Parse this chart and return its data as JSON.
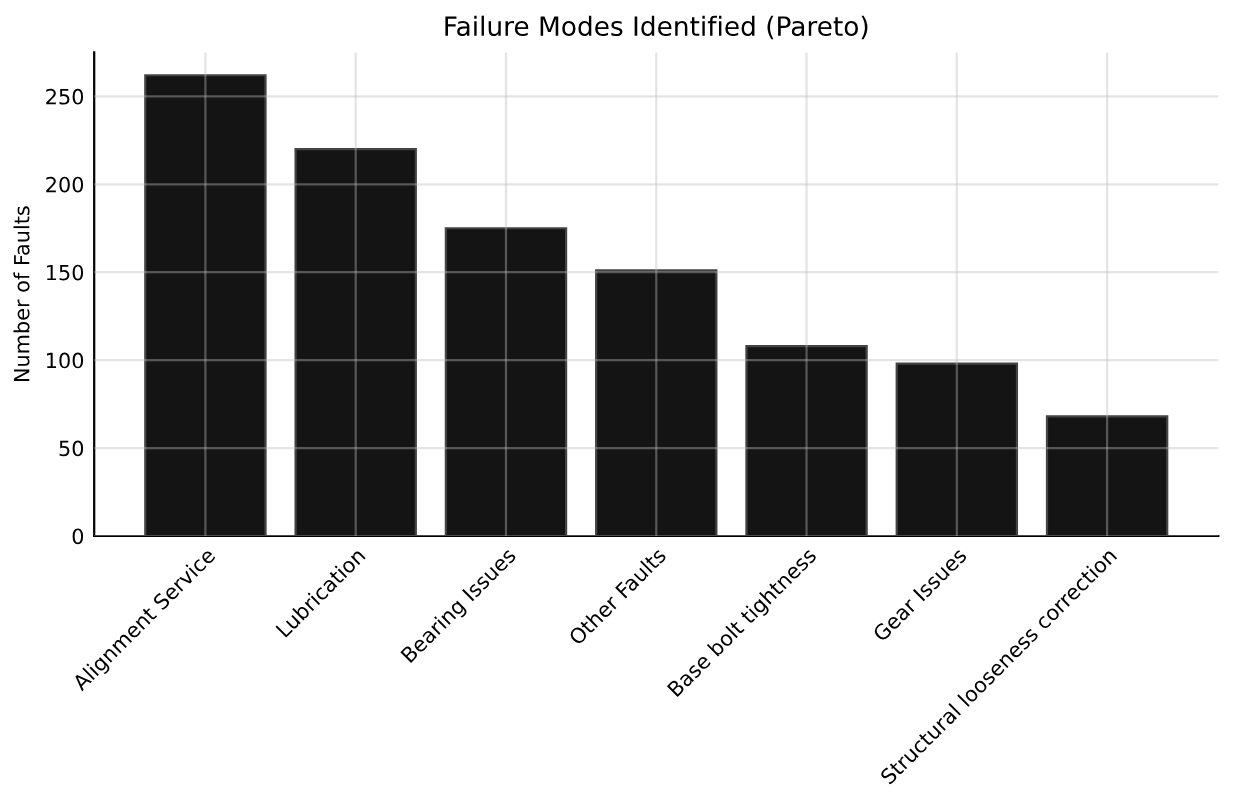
{
  "chart_data": {
    "type": "bar",
    "title": "Failure Modes Identified (Pareto)",
    "ylabel": "Number of Faults",
    "categories": [
      "Alignment Service",
      "Lubrication",
      "Bearing Issues",
      "Other Faults",
      "Base bolt tightness",
      "Gear Issues",
      "Structural looseness correction"
    ],
    "values": [
      262,
      220,
      175,
      151,
      108,
      98,
      68
    ],
    "color": "#141414",
    "ylim": [
      0,
      275
    ],
    "yticks": [
      0,
      50,
      100,
      150,
      200,
      250
    ],
    "grid": true
  }
}
